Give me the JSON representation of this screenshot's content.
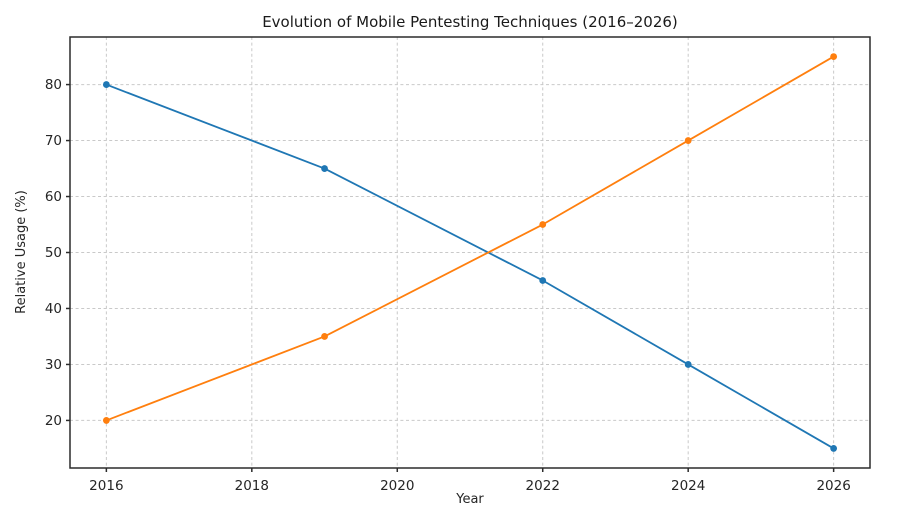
{
  "chart_data": {
    "type": "line",
    "title": "Evolution of Mobile Pentesting Techniques (2016–2026)",
    "xlabel": "Year",
    "ylabel": "Relative Usage (%)",
    "x": [
      2016,
      2019,
      2022,
      2024,
      2026
    ],
    "series": [
      {
        "color": "#1f77b4",
        "marker": "circle",
        "values": [
          80,
          65,
          45,
          30,
          15
        ]
      },
      {
        "color": "#ff7f0e",
        "marker": "circle",
        "values": [
          20,
          35,
          55,
          70,
          85
        ]
      }
    ],
    "x_ticks": [
      2016,
      2018,
      2020,
      2022,
      2024,
      2026
    ],
    "y_ticks": [
      20,
      30,
      40,
      50,
      60,
      70,
      80
    ],
    "xlim": [
      2015.5,
      2026.5
    ],
    "ylim": [
      11.5,
      88.5
    ],
    "grid": true,
    "grid_style": "dashed",
    "legend": "none",
    "colors": {
      "grid": "#c9c9c9",
      "spine": "#2b2b2b",
      "tick_label": "#262626",
      "title": "#1a1a1a",
      "axis_label": "#262626",
      "background": "#ffffff"
    }
  }
}
